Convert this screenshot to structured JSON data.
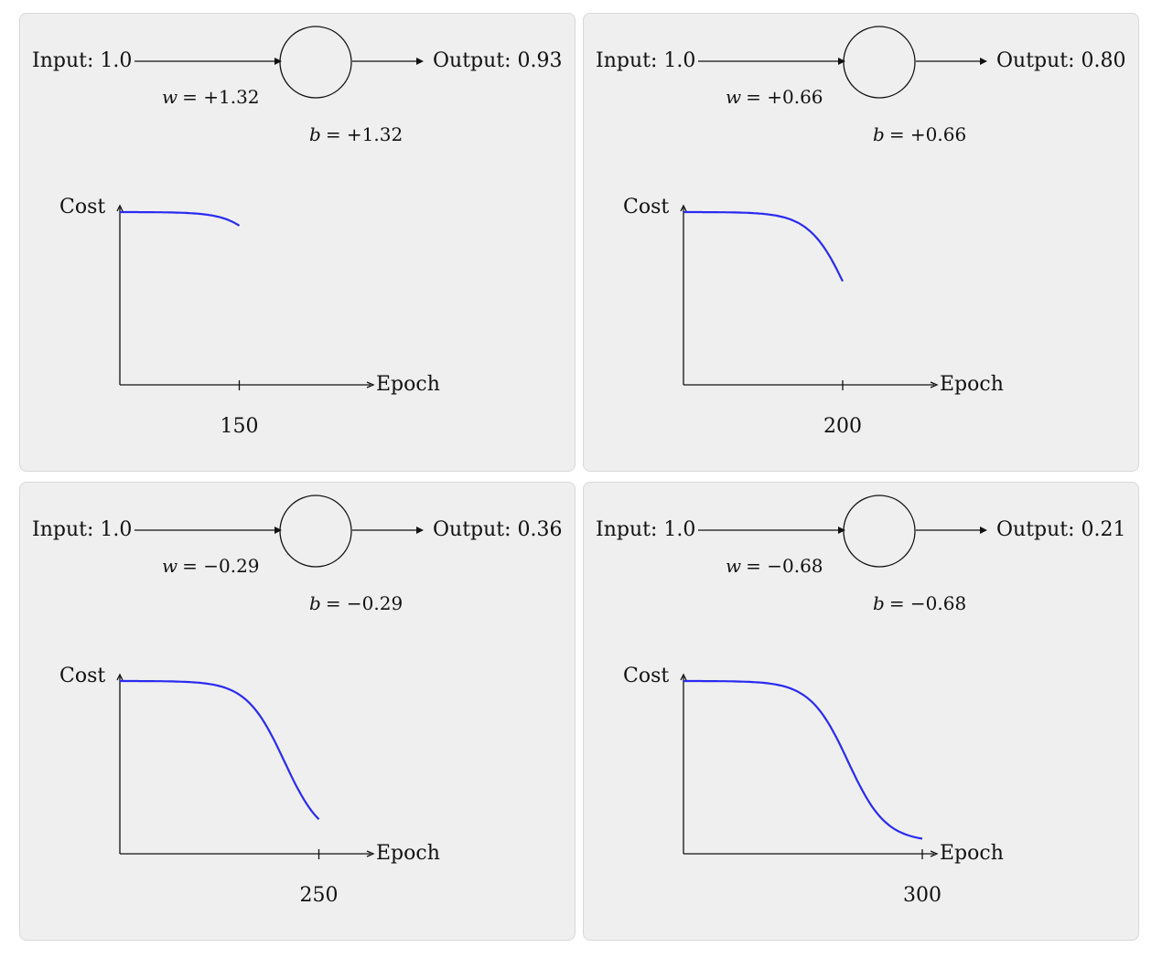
{
  "panels": [
    {
      "input_label": "Input: 1.0",
      "output_label": "Output: 0.93",
      "w_var": "w",
      "w_value": "= +1.32",
      "b_var": "b",
      "b_value": "= +1.32",
      "cost_label": "Cost",
      "epoch_label": "Epoch",
      "epoch_tick_label": "150",
      "curve_epoch_fraction": 0.45
    },
    {
      "input_label": "Input: 1.0",
      "output_label": "Output: 0.80",
      "w_var": "w",
      "w_value": "= +0.66",
      "b_var": "b",
      "b_value": "= +0.66",
      "cost_label": "Cost",
      "epoch_label": "Epoch",
      "epoch_tick_label": "200",
      "curve_epoch_fraction": 0.6
    },
    {
      "input_label": "Input: 1.0",
      "output_label": "Output: 0.36",
      "w_var": "w",
      "w_value": "= −0.29",
      "b_var": "b",
      "b_value": "= −0.29",
      "cost_label": "Cost",
      "epoch_label": "Epoch",
      "epoch_tick_label": "250",
      "curve_epoch_fraction": 0.75
    },
    {
      "input_label": "Input: 1.0",
      "output_label": "Output: 0.21",
      "w_var": "w",
      "w_value": "= −0.68",
      "b_var": "b",
      "b_value": "= −0.68",
      "cost_label": "Cost",
      "epoch_label": "Epoch",
      "epoch_tick_label": "300",
      "curve_epoch_fraction": 0.9
    }
  ],
  "colors": {
    "curve": "#2a2af0",
    "panel_bg": "#efefef"
  }
}
